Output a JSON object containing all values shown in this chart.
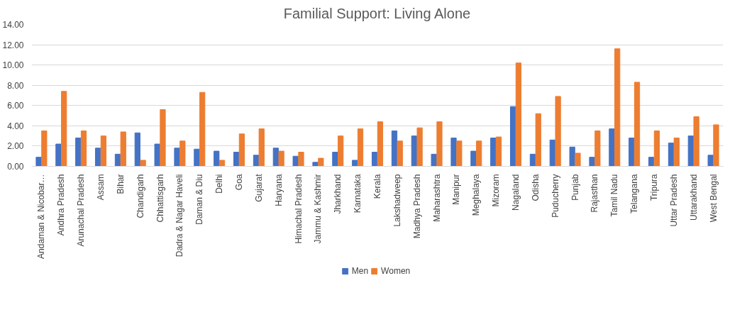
{
  "chart_data": {
    "type": "bar",
    "title": "Familial Support: Living Alone",
    "categories": [
      "Andaman & Nicobar…",
      "Andhra Pradesh",
      "Arunachal Pradesh",
      "Assam",
      "Bihar",
      "Chandigarh",
      "Chhattisgarh",
      "Dadra & Nagar Haveli",
      "Daman & Diu",
      "Delhi",
      "Goa",
      "Gujarat",
      "Haryana",
      "Himachal Pradesh",
      "Jammu & Kashmir",
      "Jharkhand",
      "Karnataka",
      "Kerala",
      "Lakshadweep",
      "Madhya Pradesh",
      "Maharashtra",
      "Manipur",
      "Meghalaya",
      "Mizoram",
      "Nagaland",
      "Odisha",
      "Puducherry",
      "Punjab",
      "Rajasthan",
      "Tamil Nadu",
      "Telangana",
      "Tripura",
      "Uttar Pradesh",
      "Uttarakhand",
      "West Bengal"
    ],
    "series": [
      {
        "name": "Men",
        "color": "#4472c4",
        "values": [
          0.9,
          2.2,
          2.8,
          1.8,
          1.2,
          3.3,
          2.2,
          1.8,
          1.7,
          1.5,
          1.4,
          1.1,
          1.8,
          1.0,
          0.4,
          1.4,
          0.6,
          1.4,
          3.5,
          3.0,
          1.2,
          2.8,
          1.5,
          2.8,
          5.9,
          1.2,
          2.6,
          1.9,
          0.9,
          3.7,
          2.8,
          0.9,
          2.3,
          3.0,
          1.1
        ]
      },
      {
        "name": "Women",
        "color": "#ed7d31",
        "values": [
          3.5,
          7.4,
          3.5,
          3.0,
          3.4,
          0.6,
          5.6,
          2.5,
          7.3,
          0.6,
          3.2,
          3.7,
          1.5,
          1.4,
          0.8,
          3.0,
          3.7,
          4.4,
          2.5,
          3.8,
          4.4,
          2.5,
          2.5,
          2.9,
          10.2,
          5.2,
          6.9,
          1.3,
          3.5,
          11.6,
          8.3,
          3.5,
          2.8,
          4.9,
          4.1
        ]
      }
    ],
    "ylim": [
      0,
      14
    ],
    "yticks": [
      {
        "value": 0,
        "label": "0.00"
      },
      {
        "value": 2,
        "label": "2.00"
      },
      {
        "value": 4,
        "label": "4.00"
      },
      {
        "value": 6,
        "label": "6.00"
      },
      {
        "value": 8,
        "label": "8.00"
      },
      {
        "value": 10,
        "label": "10.00"
      },
      {
        "value": 12,
        "label": "12.00"
      },
      {
        "value": 14,
        "label": "14.00"
      }
    ],
    "grid": "y",
    "legend": "bottom"
  }
}
